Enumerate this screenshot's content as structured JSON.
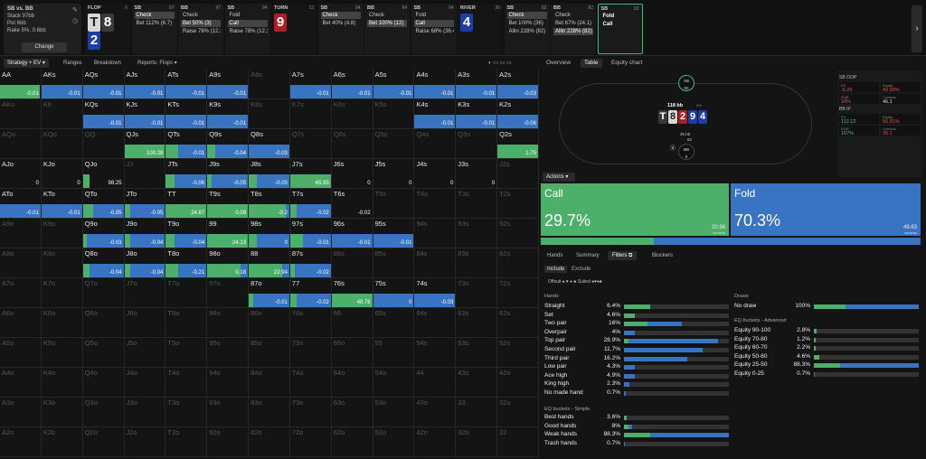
{
  "info": {
    "title": "SB vs. BB",
    "lines": [
      "Stack 97bb",
      "Pot 6bb",
      "Rake 5%, 0.6bb"
    ],
    "change": "Change"
  },
  "cols": [
    {
      "nm": "FLOP",
      "sz": "6",
      "cards": [
        "T",
        "8",
        "2"
      ],
      "ctypes": [
        "cw",
        "cg",
        "cb"
      ],
      "acts": []
    },
    {
      "nm": "SB",
      "sz": "97",
      "acts": [
        {
          "t": "Check",
          "s": 1
        },
        {
          "t": "Bet 112% (6.7)",
          "s": 0
        }
      ]
    },
    {
      "nm": "BB",
      "sz": "97",
      "acts": [
        {
          "t": "Check",
          "s": 0
        },
        {
          "t": "Bet 50%  (3)",
          "s": 1
        },
        {
          "t": "Raise 78% (12.3)",
          "s": 0
        }
      ]
    },
    {
      "nm": "SB",
      "sz": "94",
      "acts": [
        {
          "t": "Fold",
          "s": 0
        },
        {
          "t": "Call",
          "s": 1
        },
        {
          "t": "Raise 78% (12.3)",
          "s": 0
        }
      ]
    },
    {
      "nm": "TURN",
      "sz": "12",
      "cards": [
        "9"
      ],
      "ctypes": [
        "cr"
      ],
      "acts": []
    },
    {
      "nm": "SB",
      "sz": "94",
      "acts": [
        {
          "t": "Check",
          "s": 1
        },
        {
          "t": "Bet 40%  (4.8)",
          "s": 0
        }
      ]
    },
    {
      "nm": "BB",
      "sz": "94",
      "acts": [
        {
          "t": "Check",
          "s": 0
        },
        {
          "t": "Bet 100% (12)",
          "s": 1
        }
      ]
    },
    {
      "nm": "SB",
      "sz": "94",
      "acts": [
        {
          "t": "Fold",
          "s": 0
        },
        {
          "t": "Call",
          "s": 1
        },
        {
          "t": "Raise 68% (36.4)",
          "s": 0
        }
      ]
    },
    {
      "nm": "RIVER",
      "sz": "36",
      "cards": [
        "4"
      ],
      "ctypes": [
        "cb"
      ],
      "acts": []
    },
    {
      "nm": "SB",
      "sz": "82",
      "acts": [
        {
          "t": "Check",
          "s": 1
        },
        {
          "t": "Bet 100%  (36)",
          "s": 0
        },
        {
          "t": "Allin 228%  (82)",
          "s": 0
        }
      ]
    },
    {
      "nm": "BB",
      "sz": "82",
      "acts": [
        {
          "t": "Check",
          "s": 0
        },
        {
          "t": "Bet 67%  (24.1)",
          "s": 0
        },
        {
          "t": "Allin 228% (82)",
          "s": 1
        }
      ]
    },
    {
      "nm": "SB",
      "sz": "82",
      "acts": [
        {
          "t": "Fold",
          "s": 2
        },
        {
          "t": "Call",
          "s": 2
        }
      ]
    }
  ],
  "tabs": [
    "Strategy + EV",
    "Ranges",
    "Breakdown",
    "Reports: Flops"
  ],
  "grid": [
    [
      [
        "AA",
        0.95,
        0,
        "-0.01",
        0
      ],
      [
        "AKs",
        0,
        1,
        "-0.01",
        0
      ],
      [
        "AQs",
        0,
        1,
        "-0.01",
        0
      ],
      [
        "AJs",
        0,
        1,
        "-0.01",
        0
      ],
      [
        "ATs",
        0,
        1,
        "-0.01",
        0
      ],
      [
        "A9s",
        0,
        1,
        "-0.01",
        0
      ],
      [
        "A8s",
        0,
        0,
        "",
        1
      ],
      [
        "A7s",
        0,
        1,
        "-0.01",
        0
      ],
      [
        "A6s",
        0,
        1,
        "-0.01",
        0
      ],
      [
        "A5s",
        0,
        1,
        "-0.01",
        0
      ],
      [
        "A4s",
        0,
        1,
        "-0.01",
        0
      ],
      [
        "A3s",
        0,
        1,
        "-0.01",
        0
      ],
      [
        "A2s",
        0,
        1,
        "-0.03",
        0
      ]
    ],
    [
      [
        "AKo",
        0,
        0,
        "",
        1
      ],
      [
        "KK",
        0,
        0,
        "",
        1
      ],
      [
        "KQs",
        0,
        1,
        "-0.01",
        0
      ],
      [
        "KJs",
        0,
        1,
        "-0.01",
        0
      ],
      [
        "KTs",
        0,
        1,
        "-0.01",
        0
      ],
      [
        "K9s",
        0,
        1,
        "-0.01",
        0
      ],
      [
        "K8s",
        0,
        0,
        "",
        1
      ],
      [
        "K7s",
        0,
        0,
        "",
        1
      ],
      [
        "K6s",
        0,
        0,
        "",
        1
      ],
      [
        "K5s",
        0,
        0,
        "",
        1
      ],
      [
        "K4s",
        0,
        1,
        "-0.01",
        0
      ],
      [
        "K3s",
        0,
        1,
        "-0.01",
        0
      ],
      [
        "K2s",
        0,
        1,
        "-0.06",
        0
      ]
    ],
    [
      [
        "AQo",
        0,
        0,
        "",
        1
      ],
      [
        "KQo",
        0,
        0,
        "",
        1
      ],
      [
        "QQ",
        0,
        0,
        "",
        1
      ],
      [
        "QJs",
        1,
        0,
        "100.28",
        0
      ],
      [
        "QTs",
        0.3,
        0.7,
        "-0.01",
        0
      ],
      [
        "Q9s",
        0.2,
        0.8,
        "-0.04",
        0
      ],
      [
        "Q8s",
        0,
        1,
        "-0.03",
        0
      ],
      [
        "Q7s",
        0,
        0,
        "",
        1
      ],
      [
        "Q6s",
        0,
        0,
        "",
        1
      ],
      [
        "Q5s",
        0,
        0,
        "",
        1
      ],
      [
        "Q4s",
        0,
        0,
        "",
        1
      ],
      [
        "Q3s",
        0,
        0,
        "",
        1
      ],
      [
        "Q2s",
        1,
        0,
        "1.75",
        0
      ]
    ],
    [
      [
        "AJo",
        0,
        0,
        "0",
        0
      ],
      [
        "KJo",
        0,
        0,
        "0",
        0
      ],
      [
        "QJo",
        0.15,
        0,
        "98.25",
        0
      ],
      [
        "JJ",
        0,
        0,
        "",
        1
      ],
      [
        "JTs",
        0.2,
        0.8,
        "-0.06",
        0
      ],
      [
        "J9s",
        0.1,
        0.9,
        "-0.05",
        0
      ],
      [
        "J8s",
        0.2,
        0.8,
        "-0.03",
        0
      ],
      [
        "J7s",
        1,
        0,
        "65.93",
        0
      ],
      [
        "J6s",
        0,
        0,
        "0",
        0
      ],
      [
        "J5s",
        0,
        0,
        "0",
        0
      ],
      [
        "J4s",
        0,
        0,
        "0",
        0
      ],
      [
        "J3s",
        0,
        0,
        "0",
        0
      ],
      [
        "J2s",
        0,
        0,
        "",
        1
      ]
    ],
    [
      [
        "ATo",
        0,
        1,
        "-0.01",
        0
      ],
      [
        "KTo",
        0,
        1,
        "-0.01",
        0
      ],
      [
        "QTo",
        0.25,
        0.75,
        "-0.05",
        0
      ],
      [
        "JTo",
        0.15,
        0.85,
        "-0.05",
        0
      ],
      [
        "TT",
        1,
        0,
        "24.87",
        0
      ],
      [
        "T9s",
        1,
        0,
        "0.08",
        0
      ],
      [
        "T8s",
        0.9,
        0.1,
        "-0.2",
        0
      ],
      [
        "T7s",
        0.15,
        0.85,
        "-0.02",
        0
      ],
      [
        "T6s",
        0,
        0,
        "-0.02",
        0
      ],
      [
        "T5s",
        0,
        0,
        "",
        1
      ],
      [
        "T4s",
        0,
        0,
        "",
        1
      ],
      [
        "T3s",
        0,
        0,
        "",
        1
      ],
      [
        "T2s",
        0,
        0,
        "",
        1
      ]
    ],
    [
      [
        "A9o",
        0,
        0,
        "",
        1
      ],
      [
        "K9o",
        0,
        0,
        "",
        1
      ],
      [
        "Q9o",
        0.1,
        0.9,
        "-0.03",
        0
      ],
      [
        "J9o",
        0.15,
        0.85,
        "-0.04",
        0
      ],
      [
        "T9o",
        0.2,
        0.8,
        "-0.04",
        0
      ],
      [
        "99",
        1,
        0,
        "24.13",
        0
      ],
      [
        "98s",
        0.2,
        0.8,
        "0",
        0
      ],
      [
        "97s",
        0.3,
        0.7,
        "-0.01",
        0
      ],
      [
        "96s",
        0,
        1,
        "-0.01",
        0
      ],
      [
        "95s",
        0,
        1,
        "-0.01",
        0
      ],
      [
        "94s",
        0,
        0,
        "",
        1
      ],
      [
        "93s",
        0,
        0,
        "",
        1
      ],
      [
        "92s",
        0,
        0,
        "",
        1
      ]
    ],
    [
      [
        "A8o",
        0,
        0,
        "",
        1
      ],
      [
        "K8o",
        0,
        0,
        "",
        1
      ],
      [
        "Q8o",
        0.15,
        0.85,
        "-0.04",
        0
      ],
      [
        "J8o",
        0.15,
        0.85,
        "-0.04",
        0
      ],
      [
        "T8o",
        0.3,
        0.7,
        "-0.21",
        0
      ],
      [
        "98o",
        0.8,
        0.2,
        "0.18",
        0
      ],
      [
        "88",
        0.8,
        0.2,
        "22.94",
        0
      ],
      [
        "87s",
        0.1,
        0.9,
        "-0.02",
        0
      ],
      [
        "86s",
        0,
        0,
        "",
        1
      ],
      [
        "85s",
        0,
        0,
        "",
        1
      ],
      [
        "84s",
        0,
        0,
        "",
        1
      ],
      [
        "83s",
        0,
        0,
        "",
        1
      ],
      [
        "82s",
        0,
        0,
        "",
        1
      ]
    ],
    [
      [
        "A7o",
        0,
        0,
        "",
        1
      ],
      [
        "K7o",
        0,
        0,
        "",
        1
      ],
      [
        "Q7o",
        0,
        0,
        "",
        1
      ],
      [
        "J7o",
        0,
        0,
        "",
        1
      ],
      [
        "T7o",
        0,
        0,
        "",
        1
      ],
      [
        "97o",
        0,
        0,
        "",
        1
      ],
      [
        "87o",
        0.1,
        0.9,
        "-0.01",
        0
      ],
      [
        "77",
        0.15,
        0.85,
        "-0.02",
        0
      ],
      [
        "76s",
        1,
        0,
        "40.78",
        0
      ],
      [
        "75s",
        0,
        1,
        "0",
        0
      ],
      [
        "74s",
        0,
        1,
        "-0.03",
        0
      ],
      [
        "73s",
        0,
        0,
        "",
        1
      ],
      [
        "72s",
        0,
        0,
        "",
        1
      ]
    ],
    [
      [
        "A6o",
        0,
        0,
        "",
        1
      ],
      [
        "K6o",
        0,
        0,
        "",
        1
      ],
      [
        "Q6o",
        0,
        0,
        "",
        1
      ],
      [
        "J6o",
        0,
        0,
        "",
        1
      ],
      [
        "T6o",
        0,
        0,
        "",
        1
      ],
      [
        "96o",
        0,
        0,
        "",
        1
      ],
      [
        "86o",
        0,
        0,
        "",
        1
      ],
      [
        "76o",
        0,
        0,
        "",
        1
      ],
      [
        "66",
        0,
        0,
        "",
        1
      ],
      [
        "65s",
        0,
        0,
        "",
        1
      ],
      [
        "64s",
        0,
        0,
        "",
        1
      ],
      [
        "63s",
        0,
        0,
        "",
        1
      ],
      [
        "62s",
        0,
        0,
        "",
        1
      ]
    ],
    [
      [
        "A5o",
        0,
        0,
        "",
        1
      ],
      [
        "K5o",
        0,
        0,
        "",
        1
      ],
      [
        "Q5o",
        0,
        0,
        "",
        1
      ],
      [
        "J5o",
        0,
        0,
        "",
        1
      ],
      [
        "T5o",
        0,
        0,
        "",
        1
      ],
      [
        "95o",
        0,
        0,
        "",
        1
      ],
      [
        "85o",
        0,
        0,
        "",
        1
      ],
      [
        "75o",
        0,
        0,
        "",
        1
      ],
      [
        "65o",
        0,
        0,
        "",
        1
      ],
      [
        "55",
        0,
        0,
        "",
        1
      ],
      [
        "54s",
        0,
        0,
        "",
        1
      ],
      [
        "53s",
        0,
        0,
        "",
        1
      ],
      [
        "52s",
        0,
        0,
        "",
        1
      ]
    ],
    [
      [
        "A4o",
        0,
        0,
        "",
        1
      ],
      [
        "K4o",
        0,
        0,
        "",
        1
      ],
      [
        "Q4o",
        0,
        0,
        "",
        1
      ],
      [
        "J4o",
        0,
        0,
        "",
        1
      ],
      [
        "T4o",
        0,
        0,
        "",
        1
      ],
      [
        "94o",
        0,
        0,
        "",
        1
      ],
      [
        "84o",
        0,
        0,
        "",
        1
      ],
      [
        "74o",
        0,
        0,
        "",
        1
      ],
      [
        "64o",
        0,
        0,
        "",
        1
      ],
      [
        "54o",
        0,
        0,
        "",
        1
      ],
      [
        "44",
        0,
        0,
        "",
        1
      ],
      [
        "43s",
        0,
        0,
        "",
        1
      ],
      [
        "42s",
        0,
        0,
        "",
        1
      ]
    ],
    [
      [
        "A3o",
        0,
        0,
        "",
        1
      ],
      [
        "K3o",
        0,
        0,
        "",
        1
      ],
      [
        "Q3o",
        0,
        0,
        "",
        1
      ],
      [
        "J3o",
        0,
        0,
        "",
        1
      ],
      [
        "T3o",
        0,
        0,
        "",
        1
      ],
      [
        "93o",
        0,
        0,
        "",
        1
      ],
      [
        "83o",
        0,
        0,
        "",
        1
      ],
      [
        "73o",
        0,
        0,
        "",
        1
      ],
      [
        "63o",
        0,
        0,
        "",
        1
      ],
      [
        "53o",
        0,
        0,
        "",
        1
      ],
      [
        "43o",
        0,
        0,
        "",
        1
      ],
      [
        "33",
        0,
        0,
        "",
        1
      ],
      [
        "32s",
        0,
        0,
        "",
        1
      ]
    ],
    [
      [
        "A2o",
        0,
        0,
        "",
        1
      ],
      [
        "K2o",
        0,
        0,
        "",
        1
      ],
      [
        "Q2o",
        0,
        0,
        "",
        1
      ],
      [
        "J2o",
        0,
        0,
        "",
        1
      ],
      [
        "T2o",
        0,
        0,
        "",
        1
      ],
      [
        "92o",
        0,
        0,
        "",
        1
      ],
      [
        "82o",
        0,
        0,
        "",
        1
      ],
      [
        "72o",
        0,
        0,
        "",
        1
      ],
      [
        "62o",
        0,
        0,
        "",
        1
      ],
      [
        "52o",
        0,
        0,
        "",
        1
      ],
      [
        "42o",
        0,
        0,
        "",
        1
      ],
      [
        "32o",
        0,
        0,
        "",
        1
      ],
      [
        "22",
        0,
        0,
        "",
        1
      ]
    ]
  ],
  "rtabs": [
    "Overview",
    "Table",
    "Equity chart"
  ],
  "table": {
    "pot": "118 bb",
    "pot_small": "5%",
    "sb_seat": [
      "SB",
      "82"
    ],
    "bb_seat": [
      "BB",
      "0"
    ],
    "sb_bet": "82",
    "bb_bet": "35 bb",
    "board": [
      "T",
      "8",
      "2",
      "9",
      "4"
    ],
    "board_t": [
      "cg",
      "cw",
      "cr",
      "cb",
      "cb"
    ]
  },
  "stats": {
    "sb_head": "SB  OOP",
    "bb_head": "BB  IP",
    "sb": [
      [
        "EV",
        "-5.26",
        "red"
      ],
      [
        "Equity",
        "43.09%",
        "red"
      ],
      [
        "EQR",
        "34%",
        "red"
      ],
      [
        "Combos",
        "46.1",
        ""
      ]
    ],
    "bb": [
      [
        "EV",
        "112.12",
        "grn"
      ],
      [
        "Equity",
        "56.91%",
        "red"
      ],
      [
        "EQR",
        "167%",
        "grn"
      ],
      [
        "Combos",
        "35.1",
        "red"
      ]
    ]
  },
  "actions": "Actions",
  "call": {
    "name": "Call",
    "pct": "29.7%",
    "combos": "20.98",
    "cl": "combos"
  },
  "fold": {
    "name": "Fold",
    "pct": "70.3%",
    "combos": "49.63",
    "cl": "combos"
  },
  "call_frac": 0.297,
  "ftabs": [
    "Hands",
    "Summary",
    "Filters",
    "Blockers"
  ],
  "inc": [
    "Include",
    "Exclude"
  ],
  "suits": "Offsuit  ♠ ♥ ♦ ♣    Suited  ♠♥♦♣",
  "hands_title": "Hands",
  "hands": [
    [
      "Straight",
      "6.4%",
      1,
      0.25
    ],
    [
      "Set",
      "4.6%",
      1,
      0.1
    ],
    [
      "Two pair",
      "16%",
      0.4,
      0.55
    ],
    [
      "Overpair",
      "4%",
      0,
      0.1
    ],
    [
      "Top pair",
      "28.9%",
      0.05,
      0.9
    ],
    [
      "Second pair",
      "11.7%",
      0,
      0.75
    ],
    [
      "Third pair",
      "16.2%",
      0,
      0.6
    ],
    [
      "Low pair",
      "4.3%",
      0,
      0.1
    ],
    [
      "Ace high",
      "4.9%",
      0,
      0.1
    ],
    [
      "King high",
      "2.3%",
      0,
      0.05
    ],
    [
      "No made hand",
      "0.7%",
      0,
      0.02
    ]
  ],
  "eqs_title": "EQ buckets - Simple",
  "eqs": [
    [
      "Best hands",
      "3.6%",
      1,
      0.03
    ],
    [
      "Good hands",
      "8%",
      0.5,
      0.08
    ],
    [
      "Weak hands",
      "88.3%",
      0.25,
      1
    ],
    [
      "Trash hands",
      "0.7%",
      0,
      0.01
    ]
  ],
  "draws_title": "Draws",
  "draws": [
    [
      "No draw",
      "100%",
      0.3,
      1
    ]
  ],
  "eqa_title": "EQ buckets - Advanced",
  "eqa": [
    [
      "Equity 90-100",
      "2.8%",
      1,
      0.03
    ],
    [
      "Equity 70-80",
      "1.2%",
      1,
      0.02
    ],
    [
      "Equity 60-70",
      "2.2%",
      1,
      0.02
    ],
    [
      "Equity 50-60",
      "4.6%",
      1,
      0.05
    ],
    [
      "Equity 25-50",
      "88.3%",
      0.25,
      1
    ],
    [
      "Equity 0-25",
      "0.7%",
      0,
      0.01
    ]
  ]
}
